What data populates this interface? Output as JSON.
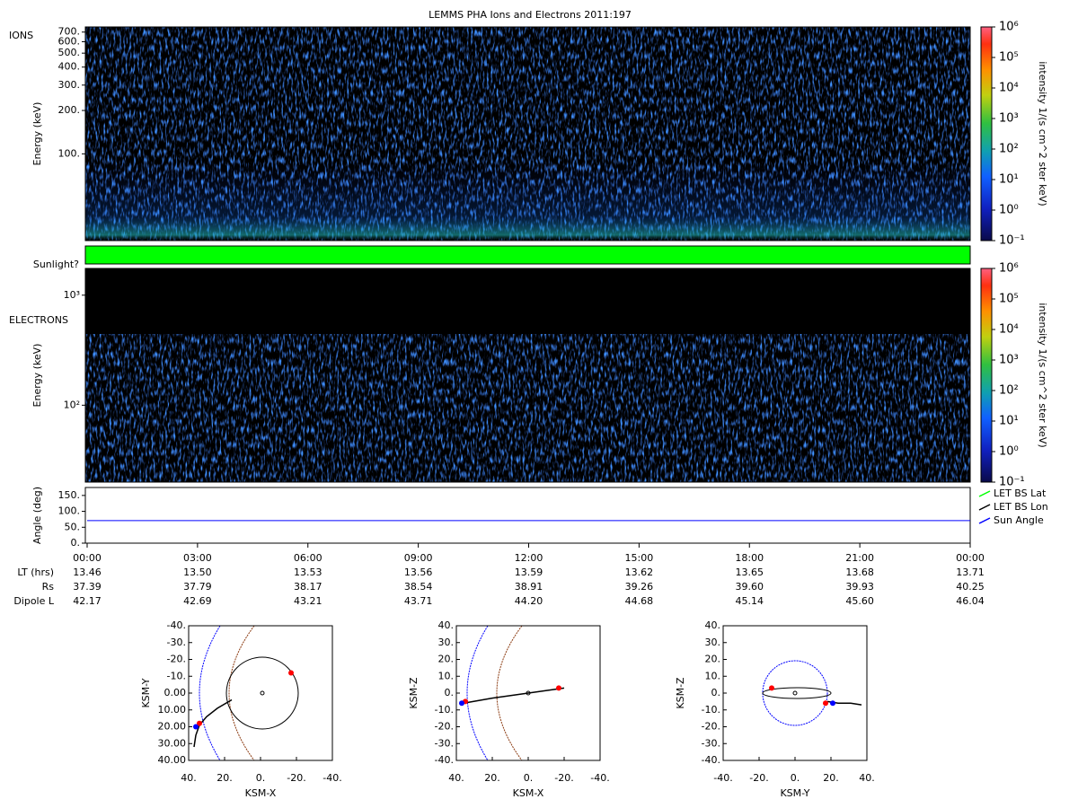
{
  "title": "LEMMS PHA Ions and Electrons  2011:197",
  "chart_data": [
    {
      "type": "heatmap",
      "panel_label": "IONS",
      "y_label": "Energy (keV)",
      "log_scale": true,
      "ylim": [
        25,
        760
      ],
      "yticks": [
        {
          "value": 100,
          "label": "100."
        },
        {
          "value": 200,
          "label": "200."
        },
        {
          "value": 300,
          "label": "300."
        },
        {
          "value": 400,
          "label": "400."
        },
        {
          "value": 500,
          "label": "500."
        },
        {
          "value": 600,
          "label": "600."
        },
        {
          "value": 700,
          "label": "700."
        }
      ],
      "colorbar": {
        "label": "intensity 1/(s cm^2 ster keV)",
        "lim": [
          0.1,
          1000000
        ],
        "ticks": [
          {
            "value": 0.1,
            "label": "10⁻¹"
          },
          {
            "value": 1,
            "label": "10⁰"
          },
          {
            "value": 10,
            "label": "10¹"
          },
          {
            "value": 100,
            "label": "10²"
          },
          {
            "value": 1000,
            "label": "10³"
          },
          {
            "value": 10000,
            "label": "10⁴"
          },
          {
            "value": 100000,
            "label": "10⁵"
          },
          {
            "value": 1000000,
            "label": "10⁶"
          }
        ]
      }
    },
    {
      "type": "flag",
      "label": "Sunlight?",
      "color": "#00ff00"
    },
    {
      "type": "heatmap",
      "panel_label": "ELECTRONS",
      "y_label": "Energy (keV)",
      "log_scale": true,
      "ylim": [
        20,
        1750
      ],
      "yticks": [
        {
          "value": 100,
          "label": "10²"
        },
        {
          "value": 1000,
          "label": "10³"
        }
      ],
      "colorbar": {
        "label": "intensity 1/(s cm^2 ster keV)",
        "lim": [
          0.1,
          1000000
        ],
        "ticks": [
          {
            "value": 0.1,
            "label": "10⁻¹"
          },
          {
            "value": 1,
            "label": "10⁰"
          },
          {
            "value": 10,
            "label": "10¹"
          },
          {
            "value": 100,
            "label": "10²"
          },
          {
            "value": 1000,
            "label": "10³"
          },
          {
            "value": 10000,
            "label": "10⁴"
          },
          {
            "value": 100000,
            "label": "10⁵"
          },
          {
            "value": 1000000,
            "label": "10⁶"
          }
        ]
      }
    },
    {
      "type": "line",
      "y_label": "Angle (deg)",
      "ylim": [
        0,
        175
      ],
      "yticks": [
        {
          "value": 0,
          "label": "0."
        },
        {
          "value": 50,
          "label": "50."
        },
        {
          "value": 100,
          "label": "100."
        },
        {
          "value": 150,
          "label": "150."
        }
      ],
      "categories": [
        "00:00",
        "03:00",
        "06:00",
        "09:00",
        "12:00",
        "15:00",
        "18:00",
        "21:00",
        "00:00"
      ],
      "series": [
        {
          "name": "LET BS Lat",
          "color": "#00ff00",
          "values": [
            null,
            null,
            null,
            null,
            null,
            null,
            null,
            null,
            null
          ]
        },
        {
          "name": "LET BS Lon",
          "color": "#000000",
          "values": [
            null,
            null,
            null,
            null,
            null,
            null,
            null,
            null,
            null
          ]
        },
        {
          "name": "Sun Angle",
          "color": "#0000ff",
          "values": [
            71,
            71,
            71,
            71,
            71,
            71,
            71,
            71,
            71
          ]
        }
      ]
    },
    {
      "type": "scatter",
      "x_label": "KSM-X",
      "y_label": "KSM-Y",
      "xlim": [
        40,
        -40
      ],
      "ylim": [
        40,
        -40
      ],
      "xticks": [
        {
          "value": 40,
          "label": "40."
        },
        {
          "value": 20,
          "label": "20."
        },
        {
          "value": 0,
          "label": "0."
        },
        {
          "value": -20,
          "label": "-20."
        },
        {
          "value": -40,
          "label": "-40."
        }
      ],
      "yticks": [
        {
          "value": -40,
          "label": "-40."
        },
        {
          "value": -30,
          "label": "-30."
        },
        {
          "value": -20,
          "label": "-20."
        },
        {
          "value": -10,
          "label": "-10."
        },
        0,
        10,
        20,
        30,
        40
      ],
      "trajectory": {
        "x": [
          37,
          36,
          34,
          30,
          24,
          16
        ],
        "y": [
          32,
          25,
          19,
          14,
          9,
          4
        ]
      },
      "points": {
        "x": [
          -17,
          34,
          36
        ],
        "y": [
          -12,
          18,
          20
        ],
        "colors": [
          "#ff0000",
          "#ff0000",
          "#0000ff"
        ]
      }
    },
    {
      "type": "scatter",
      "x_label": "KSM-X",
      "y_label": "KSM-Z",
      "xlim": [
        40,
        -40
      ],
      "ylim": [
        -40,
        40
      ],
      "xticks": [
        {
          "value": 40,
          "label": "40."
        },
        {
          "value": 20,
          "label": "20."
        },
        {
          "value": 0,
          "label": "0."
        },
        {
          "value": -20,
          "label": "-20."
        },
        {
          "value": -40,
          "label": "-40."
        }
      ],
      "yticks": [
        {
          "value": -40,
          "label": "-40."
        },
        {
          "value": -30,
          "label": "-30."
        },
        {
          "value": -20,
          "label": "-20."
        },
        {
          "value": -10,
          "label": "-10."
        },
        {
          "value": 0,
          "label": "0."
        },
        {
          "value": 10,
          "label": "10."
        },
        {
          "value": 20,
          "label": "20."
        },
        {
          "value": 30,
          "label": "30."
        },
        {
          "value": 40,
          "label": "40."
        }
      ],
      "trajectory": {
        "x": [
          36,
          20,
          0,
          -20
        ],
        "y": [
          -6,
          -3,
          0,
          3
        ]
      },
      "points": {
        "x": [
          -17,
          35,
          37
        ],
        "y": [
          3,
          -5,
          -6
        ],
        "colors": [
          "#ff0000",
          "#ff0000",
          "#0000ff"
        ]
      }
    },
    {
      "type": "scatter",
      "x_label": "KSM-Y",
      "y_label": "KSM-Z",
      "xlim": [
        -40,
        40
      ],
      "ylim": [
        -40,
        40
      ],
      "xticks": [
        {
          "value": -40,
          "label": "-40."
        },
        {
          "value": -20,
          "label": "-20."
        },
        {
          "value": 0,
          "label": "0."
        },
        {
          "value": 20,
          "label": "20."
        },
        {
          "value": 40,
          "label": "40."
        }
      ],
      "yticks": [
        {
          "value": -40,
          "label": "-40."
        },
        {
          "value": -30,
          "label": "-30."
        },
        {
          "value": -20,
          "label": "-20."
        },
        {
          "value": -10,
          "label": "-10."
        },
        {
          "value": 0,
          "label": "0."
        },
        {
          "value": 10,
          "label": "10."
        },
        {
          "value": 20,
          "label": "20."
        },
        {
          "value": 30,
          "label": "30."
        },
        {
          "value": 40,
          "label": "40."
        }
      ],
      "trajectory": {
        "x": [
          18,
          24,
          31,
          37
        ],
        "y": [
          -5,
          -6,
          -6,
          -7
        ]
      },
      "points": {
        "x": [
          -13,
          17,
          21
        ],
        "y": [
          3,
          -6,
          -6
        ],
        "colors": [
          "#ff0000",
          "#ff0000",
          "#0000ff"
        ]
      }
    }
  ],
  "ephemeris": {
    "rows": [
      {
        "label": "LT (hrs)",
        "values": [
          13.46,
          13.5,
          13.53,
          13.56,
          13.59,
          13.62,
          13.65,
          13.68,
          13.71
        ]
      },
      {
        "label": "Rs",
        "values": [
          37.39,
          37.79,
          38.17,
          38.54,
          38.91,
          39.26,
          39.6,
          39.93,
          40.25
        ]
      },
      {
        "label": "Dipole L",
        "values": [
          42.17,
          42.69,
          43.21,
          43.71,
          44.2,
          44.68,
          45.14,
          45.6,
          46.04
        ]
      }
    ]
  }
}
